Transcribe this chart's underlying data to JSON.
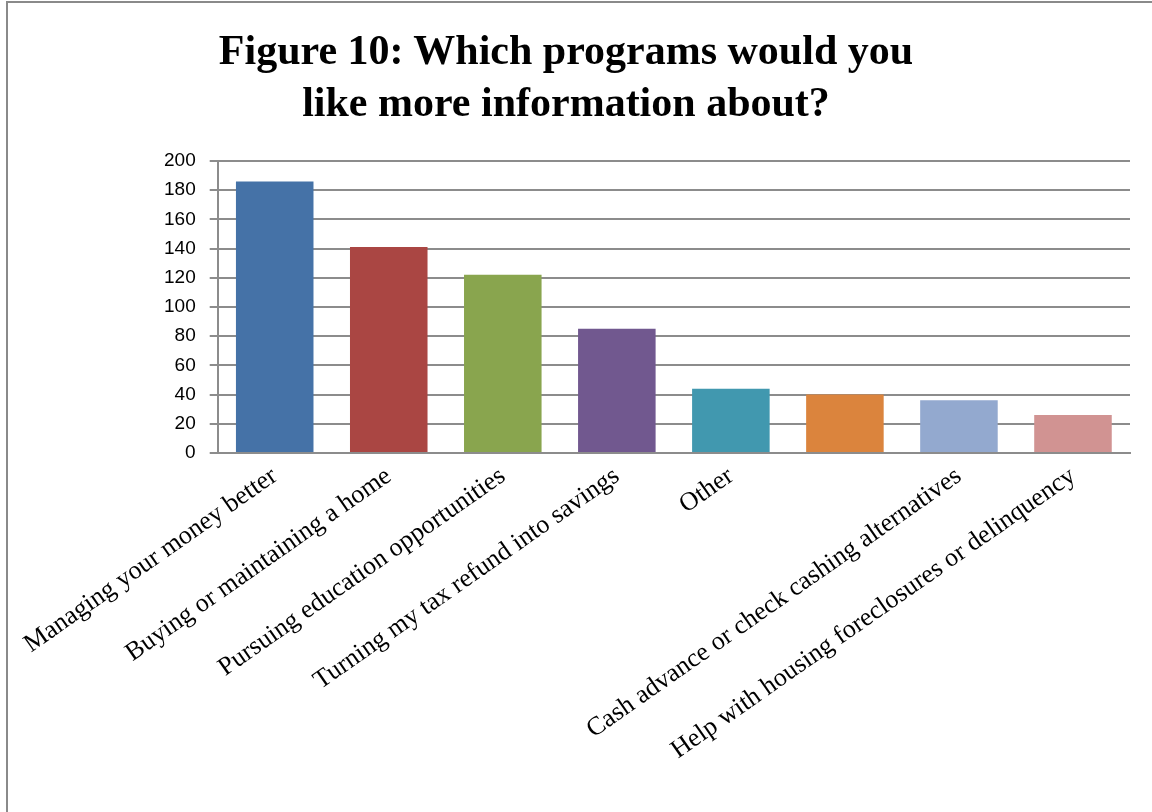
{
  "chart_data": {
    "type": "bar",
    "title": "Figure 10: Which programs would you like more information about?",
    "categories": [
      "Managing your money better",
      "Buying or maintaining a home",
      "Pursuing education opportunities",
      "Turning my tax refund into savings",
      "Other",
      null,
      "Cash advance or check cashing alternatives",
      "Help with housing foreclosures or delinquency"
    ],
    "values": [
      186,
      141,
      122,
      85,
      44,
      40,
      36,
      26
    ],
    "colors": [
      "#4572a7",
      "#aa4643",
      "#89a54e",
      "#71588f",
      "#4198af",
      "#db843d",
      "#93a9cf",
      "#d19392"
    ],
    "ylim": [
      0,
      200
    ],
    "yticks": [
      0,
      20,
      40,
      60,
      80,
      100,
      120,
      140,
      160,
      180,
      200
    ],
    "grid": "y"
  }
}
